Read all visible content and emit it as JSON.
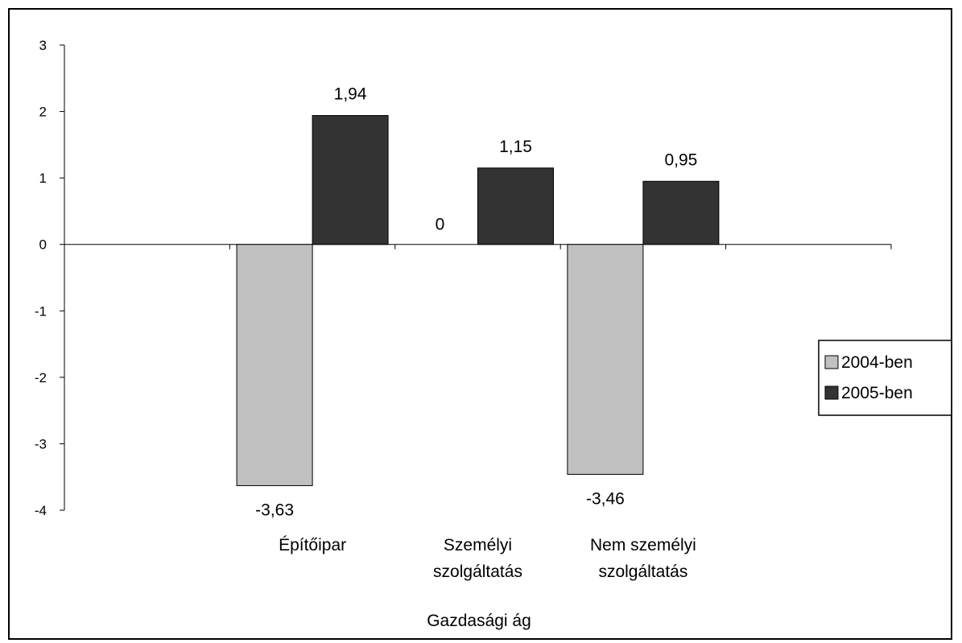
{
  "chart_data": {
    "type": "bar",
    "title": "",
    "xlabel": "Gazdasági ág",
    "ylabel": "",
    "categories": [
      [
        "Építőipar"
      ],
      [
        "Személyi",
        "szolgáltatás"
      ],
      [
        "Nem személyi",
        "szolgáltatás"
      ]
    ],
    "series": [
      {
        "name": "2004-ben",
        "values": [
          -3.63,
          0,
          -3.46
        ],
        "labels": [
          "-3,63",
          "0",
          "-3,46"
        ],
        "color": "#c0c0c0"
      },
      {
        "name": "2005-ben",
        "values": [
          1.94,
          1.15,
          0.95
        ],
        "labels": [
          "1,94",
          "1,15",
          "0,95"
        ],
        "color": "#333333"
      }
    ],
    "ylim": [
      -4,
      3
    ],
    "yticks": [
      3,
      2,
      1,
      0,
      -1,
      -2,
      -3,
      -4
    ],
    "grid": false,
    "legend_position": "right"
  }
}
